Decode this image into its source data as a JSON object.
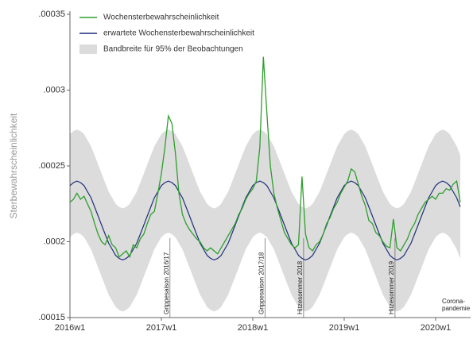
{
  "chart_data": {
    "type": "line",
    "ylabel": "Sterbewahrscheinlichkeit",
    "x": [
      "2016w1",
      "2016w3",
      "2016w5",
      "2016w7",
      "2016w9",
      "2016w11",
      "2016w13",
      "2016w15",
      "2016w17",
      "2016w19",
      "2016w21",
      "2016w23",
      "2016w25",
      "2016w27",
      "2016w29",
      "2016w31",
      "2016w33",
      "2016w35",
      "2016w37",
      "2016w39",
      "2016w41",
      "2016w43",
      "2016w45",
      "2016w47",
      "2016w49",
      "2016w51",
      "2017w1",
      "2017w3",
      "2017w5",
      "2017w7",
      "2017w9",
      "2017w11",
      "2017w13",
      "2017w15",
      "2017w17",
      "2017w19",
      "2017w21",
      "2017w23",
      "2017w25",
      "2017w27",
      "2017w29",
      "2017w31",
      "2017w33",
      "2017w35",
      "2017w37",
      "2017w39",
      "2017w41",
      "2017w43",
      "2017w45",
      "2017w47",
      "2017w49",
      "2017w51",
      "2018w1",
      "2018w3",
      "2018w5",
      "2018w7",
      "2018w9",
      "2018w11",
      "2018w13",
      "2018w15",
      "2018w17",
      "2018w19",
      "2018w21",
      "2018w23",
      "2018w25",
      "2018w27",
      "2018w29",
      "2018w31",
      "2018w33",
      "2018w35",
      "2018w37",
      "2018w39",
      "2018w41",
      "2018w43",
      "2018w45",
      "2018w47",
      "2018w49",
      "2018w51",
      "2019w1",
      "2019w3",
      "2019w5",
      "2019w7",
      "2019w9",
      "2019w11",
      "2019w13",
      "2019w15",
      "2019w17",
      "2019w19",
      "2019w21",
      "2019w23",
      "2019w25",
      "2019w27",
      "2019w29",
      "2019w31",
      "2019w33",
      "2019w35",
      "2019w37",
      "2019w39",
      "2019w41",
      "2019w43",
      "2019w45",
      "2019w47",
      "2019w49",
      "2019w51",
      "2020w1",
      "2020w3",
      "2020w5",
      "2020w7",
      "2020w9",
      "2020w11",
      "2020w13",
      "2020w15"
    ],
    "xticks": [
      "2016w1",
      "2017w1",
      "2018w1",
      "2019w1",
      "2020w1"
    ],
    "ylim": [
      0.00015,
      0.00035
    ],
    "yticks": [
      {
        "value": 0.00015,
        "label": ".00015"
      },
      {
        "value": 0.0002,
        "label": ".0002"
      },
      {
        "value": 0.00025,
        "label": ".00025"
      },
      {
        "value": 0.0003,
        "label": ".0003"
      },
      {
        "value": 0.00035,
        "label": ".00035"
      }
    ],
    "grid": false,
    "legend": "top-left",
    "series": [
      {
        "name": "Wochensterbewahrscheinlichkeit",
        "color": "#2e9e2e",
        "values": [
          0.000226,
          0.000228,
          0.000232,
          0.000228,
          0.00023,
          0.000225,
          0.00022,
          0.000212,
          0.000205,
          0.0002,
          0.000198,
          0.000204,
          0.000198,
          0.000196,
          0.00019,
          0.000192,
          0.000194,
          0.00019,
          0.000198,
          0.000196,
          0.000202,
          0.000205,
          0.000212,
          0.000218,
          0.00022,
          0.000232,
          0.000245,
          0.000262,
          0.000283,
          0.000278,
          0.000258,
          0.000232,
          0.000218,
          0.000212,
          0.000208,
          0.000205,
          0.000202,
          0.0002,
          0.000196,
          0.000194,
          0.000196,
          0.000194,
          0.000192,
          0.000196,
          0.0002,
          0.000204,
          0.000208,
          0.000212,
          0.000218,
          0.000222,
          0.000228,
          0.000232,
          0.000235,
          0.00024,
          0.000262,
          0.000322,
          0.000285,
          0.00025,
          0.000232,
          0.000222,
          0.000214,
          0.000206,
          0.000202,
          0.000198,
          0.000196,
          0.000198,
          0.000243,
          0.000205,
          0.000196,
          0.000194,
          0.000198,
          0.0002,
          0.000205,
          0.000212,
          0.000216,
          0.000222,
          0.000226,
          0.000232,
          0.000236,
          0.00024,
          0.000248,
          0.000246,
          0.000238,
          0.00023,
          0.000224,
          0.000214,
          0.000212,
          0.000206,
          0.000204,
          0.0002,
          0.000197,
          0.000196,
          0.000215,
          0.000196,
          0.000194,
          0.000198,
          0.000202,
          0.000208,
          0.000212,
          0.000218,
          0.000222,
          0.000226,
          0.000228,
          0.00023,
          0.000228,
          0.000232,
          0.000232,
          0.000235,
          0.000234,
          0.000238,
          0.00024,
          0.000226
        ]
      },
      {
        "name": "erwartete Wochensterbewahrscheinlichkeit",
        "color": "#1f2f7a",
        "values": [
          0.000237,
          0.000239,
          0.00024,
          0.000239,
          0.000237,
          0.000233,
          0.000229,
          0.000223,
          0.000217,
          0.000211,
          0.000205,
          0.000199,
          0.000195,
          0.000191,
          0.000189,
          0.000188,
          0.000189,
          0.000191,
          0.000195,
          0.000199,
          0.000205,
          0.000211,
          0.000217,
          0.000223,
          0.000229,
          0.000233,
          0.000237,
          0.000239,
          0.00024,
          0.000239,
          0.000237,
          0.000233,
          0.000229,
          0.000223,
          0.000217,
          0.000211,
          0.000205,
          0.000199,
          0.000195,
          0.000191,
          0.000189,
          0.000188,
          0.000189,
          0.000191,
          0.000195,
          0.000199,
          0.000205,
          0.000211,
          0.000217,
          0.000223,
          0.000229,
          0.000233,
          0.000237,
          0.000239,
          0.00024,
          0.000239,
          0.000237,
          0.000233,
          0.000229,
          0.000223,
          0.000217,
          0.000211,
          0.000205,
          0.000199,
          0.000195,
          0.000191,
          0.000189,
          0.000188,
          0.000189,
          0.000191,
          0.000195,
          0.000199,
          0.000205,
          0.000211,
          0.000217,
          0.000223,
          0.000229,
          0.000233,
          0.000237,
          0.000239,
          0.00024,
          0.000239,
          0.000237,
          0.000233,
          0.000229,
          0.000223,
          0.000217,
          0.000211,
          0.000205,
          0.000199,
          0.000195,
          0.000191,
          0.000189,
          0.000188,
          0.000189,
          0.000191,
          0.000195,
          0.000199,
          0.000205,
          0.000211,
          0.000217,
          0.000223,
          0.000229,
          0.000233,
          0.000237,
          0.000239,
          0.00024,
          0.000239,
          0.000237,
          0.000233,
          0.000229,
          0.000223
        ]
      }
    ],
    "band": {
      "name": "Bandbreite für 95% der Beobachtungen",
      "color": "#dcdcdc",
      "low": [
        0.000203,
        0.000205,
        0.000206,
        0.000205,
        0.000203,
        0.000199,
        0.000195,
        0.000189,
        0.000183,
        0.000177,
        0.000171,
        0.000165,
        0.000161,
        0.000157,
        0.000155,
        0.000154,
        0.000155,
        0.000157,
        0.000161,
        0.000165,
        0.000171,
        0.000177,
        0.000183,
        0.000189,
        0.000195,
        0.000199,
        0.000203,
        0.000205,
        0.000206,
        0.000205,
        0.000203,
        0.000199,
        0.000195,
        0.000189,
        0.000183,
        0.000177,
        0.000171,
        0.000165,
        0.000161,
        0.000157,
        0.000155,
        0.000154,
        0.000155,
        0.000157,
        0.000161,
        0.000165,
        0.000171,
        0.000177,
        0.000183,
        0.000189,
        0.000195,
        0.000199,
        0.000203,
        0.000205,
        0.000206,
        0.000205,
        0.000203,
        0.000199,
        0.000195,
        0.000189,
        0.000183,
        0.000177,
        0.000171,
        0.000165,
        0.000161,
        0.000157,
        0.000155,
        0.000154,
        0.000155,
        0.000157,
        0.000161,
        0.000165,
        0.000171,
        0.000177,
        0.000183,
        0.000189,
        0.000195,
        0.000199,
        0.000203,
        0.000205,
        0.000206,
        0.000205,
        0.000203,
        0.000199,
        0.000195,
        0.000189,
        0.000183,
        0.000177,
        0.000171,
        0.000165,
        0.000161,
        0.000157,
        0.000155,
        0.000154,
        0.000155,
        0.000157,
        0.000161,
        0.000165,
        0.000171,
        0.000177,
        0.000183,
        0.000189,
        0.000195,
        0.000199,
        0.000203,
        0.000205,
        0.000206,
        0.000205,
        0.000203,
        0.000199,
        0.000195,
        0.000189
      ],
      "high": [
        0.000271,
        0.000273,
        0.000274,
        0.000273,
        0.000271,
        0.000267,
        0.000263,
        0.000257,
        0.000251,
        0.000245,
        0.000239,
        0.000233,
        0.000229,
        0.000225,
        0.000223,
        0.000222,
        0.000223,
        0.000225,
        0.000229,
        0.000233,
        0.000239,
        0.000245,
        0.000251,
        0.000257,
        0.000263,
        0.000267,
        0.000271,
        0.000273,
        0.000274,
        0.000273,
        0.000271,
        0.000267,
        0.000263,
        0.000257,
        0.000251,
        0.000245,
        0.000239,
        0.000233,
        0.000229,
        0.000225,
        0.000223,
        0.000222,
        0.000223,
        0.000225,
        0.000229,
        0.000233,
        0.000239,
        0.000245,
        0.000251,
        0.000257,
        0.000263,
        0.000267,
        0.000271,
        0.000273,
        0.000274,
        0.000273,
        0.000271,
        0.000267,
        0.000263,
        0.000257,
        0.000251,
        0.000245,
        0.000239,
        0.000233,
        0.000229,
        0.000225,
        0.000223,
        0.000222,
        0.000223,
        0.000225,
        0.000229,
        0.000233,
        0.000239,
        0.000245,
        0.000251,
        0.000257,
        0.000263,
        0.000267,
        0.000271,
        0.000273,
        0.000274,
        0.000273,
        0.000271,
        0.000267,
        0.000263,
        0.000257,
        0.000251,
        0.000245,
        0.000239,
        0.000233,
        0.000229,
        0.000225,
        0.000223,
        0.000222,
        0.000223,
        0.000225,
        0.000229,
        0.000233,
        0.000239,
        0.000245,
        0.000251,
        0.000257,
        0.000263,
        0.000267,
        0.000271,
        0.000273,
        0.000274,
        0.000273,
        0.000271,
        0.000267,
        0.000263,
        0.000257
      ]
    },
    "annotations": [
      {
        "text": "Grippesaison 2016/17",
        "x": "2017w5"
      },
      {
        "text": "Grippesaison 2017/18",
        "x": "2018w7"
      },
      {
        "text": "Hitzesommer 2018",
        "x": "2018w29"
      },
      {
        "text": "Hitzesommer 2019",
        "x": "2019w29"
      }
    ],
    "note": [
      "Corona-",
      "pandemie"
    ]
  }
}
